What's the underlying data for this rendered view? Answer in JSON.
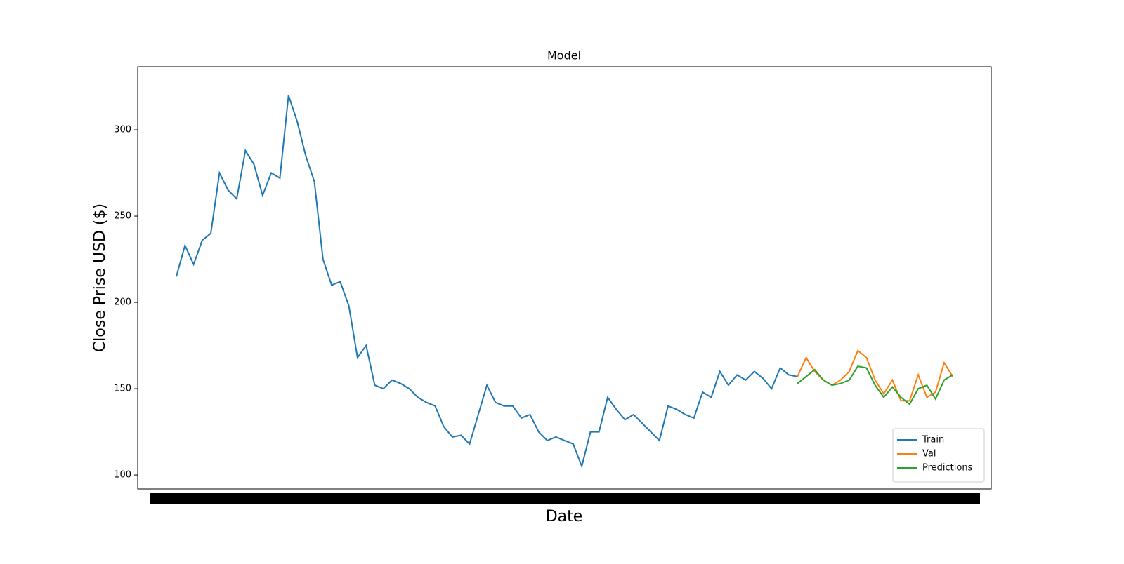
{
  "chart_data": {
    "type": "line",
    "title": "Model",
    "xlabel": "Date",
    "ylabel": "Close Prise USD ($)",
    "xlim": [
      -4.48,
      94.46
    ],
    "ylim": [
      91.9,
      336.6
    ],
    "yticks": [
      100,
      150,
      200,
      250,
      300
    ],
    "grid": false,
    "legend": "lower right",
    "series": [
      {
        "name": "Train",
        "color": "#1f77b4",
        "x": [
          0,
          1,
          2,
          3,
          4,
          5,
          6,
          7,
          8,
          9,
          10,
          11,
          12,
          13,
          14,
          15,
          16,
          17,
          18,
          19,
          20,
          21,
          22,
          23,
          24,
          25,
          26,
          27,
          28,
          29,
          30,
          31,
          32,
          33,
          34,
          35,
          36,
          37,
          38,
          39,
          40,
          41,
          42,
          43,
          44,
          45,
          46,
          47,
          48,
          49,
          50,
          51,
          52,
          53,
          54,
          55,
          56,
          57,
          58,
          59,
          60,
          61,
          62,
          63,
          64,
          65,
          66,
          67,
          68,
          69,
          70,
          71,
          72
        ],
        "values": [
          215,
          233,
          222,
          236,
          240,
          275,
          265,
          260,
          288,
          280,
          262,
          275,
          272,
          320,
          305,
          285,
          270,
          225,
          210,
          212,
          198,
          168,
          175,
          152,
          150,
          155,
          153,
          150,
          145,
          142,
          140,
          128,
          122,
          123,
          118,
          135,
          152,
          142,
          140,
          140,
          133,
          135,
          125,
          120,
          122,
          120,
          118,
          105,
          125,
          125,
          145,
          138,
          132,
          135,
          130,
          125,
          120,
          140,
          138,
          135,
          133,
          148,
          145,
          160,
          152,
          158,
          155,
          160,
          156,
          150,
          162,
          158,
          157
        ]
      },
      {
        "name": "Val",
        "color": "#ff7f0e",
        "x": [
          72,
          73,
          74,
          75,
          76,
          77,
          78,
          79,
          80,
          81,
          82,
          83,
          84,
          85,
          86,
          87,
          88,
          89,
          90
        ],
        "values": [
          157,
          168,
          160,
          155,
          152,
          155,
          160,
          172,
          168,
          155,
          147,
          155,
          143,
          143,
          158,
          145,
          148,
          165,
          157
        ]
      },
      {
        "name": "Predictions",
        "color": "#2ca02c",
        "x": [
          72,
          73,
          74,
          75,
          76,
          77,
          78,
          79,
          80,
          81,
          82,
          83,
          84,
          85,
          86,
          87,
          88,
          89,
          90
        ],
        "values": [
          153,
          157,
          161,
          155,
          152,
          153,
          155,
          163,
          162,
          152,
          145,
          151,
          145,
          141,
          150,
          152,
          144,
          155,
          158
        ]
      }
    ]
  }
}
